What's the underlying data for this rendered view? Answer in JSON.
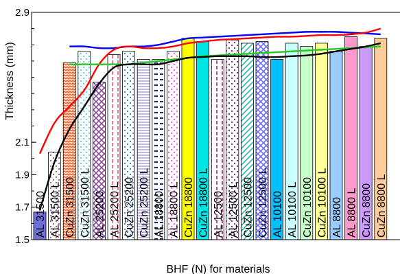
{
  "chart_data": {
    "type": "bar",
    "xlabel": "BHF (N) for materials",
    "ylabel": "Thickness (mm)",
    "ylim": [
      1.5,
      2.9
    ],
    "yticks": [
      1.5,
      1.7,
      1.9,
      2.1,
      2.9
    ],
    "ytick_labels": [
      "1.5",
      "1.7",
      "1.9",
      "2.1",
      "2.9"
    ],
    "categories": [
      "AL 31500",
      "AL 31500 L",
      "CuZn 31500",
      "CuZn 31500 L",
      "AL 25200",
      "AL 25200 L",
      "CuZn 25200",
      "CuZn 25200 L",
      "AL 18800",
      "AL 18800 L",
      "CuZn 18800",
      "CuZn 18800 L",
      "AL 12500",
      "AL 12500 L",
      "CuZn 12500",
      "CuZn 12500 L",
      "AL 10100",
      "AL 10100 L",
      "CuZn 10100",
      "CuZn 10100 L",
      "AL 8800",
      "AL 8800 L",
      "CuZn 8800",
      "CuZn 8800 L"
    ],
    "values": [
      1.67,
      2.04,
      2.59,
      2.66,
      2.47,
      2.64,
      2.66,
      2.61,
      2.61,
      2.66,
      2.74,
      2.72,
      2.61,
      2.73,
      2.71,
      2.72,
      2.61,
      2.71,
      2.69,
      2.71,
      2.66,
      2.75,
      2.69,
      2.74
    ],
    "bar_styles": [
      {
        "fill": "#6f6fd9",
        "pattern": "solid"
      },
      {
        "fill": "#a05080",
        "pattern": "dots"
      },
      {
        "fill": "#ff5a1e",
        "pattern": "zigzag"
      },
      {
        "fill": "#5ad2e0",
        "pattern": "dots"
      },
      {
        "fill": "#8a4aa0",
        "pattern": "crosshatch"
      },
      {
        "fill": "#ff4d6a",
        "pattern": "vdash"
      },
      {
        "fill": "#2d7fb0",
        "pattern": "dots"
      },
      {
        "fill": "#9a8ad8",
        "pattern": "hlines"
      },
      {
        "fill": "#1a2a70",
        "pattern": "hdash"
      },
      {
        "fill": "#ff4de0",
        "pattern": "dots"
      },
      {
        "fill": "#ffff00",
        "pattern": "solid"
      },
      {
        "fill": "#00e6e6",
        "pattern": "solid"
      },
      {
        "fill": "#a0206a",
        "pattern": "vdash"
      },
      {
        "fill": "#6a1a8a",
        "pattern": "dots"
      },
      {
        "fill": "#26b5a0",
        "pattern": "diag"
      },
      {
        "fill": "#6a6aff",
        "pattern": "crosshatch"
      },
      {
        "fill": "#00c0ff",
        "pattern": "solid"
      },
      {
        "fill": "#c8ffff",
        "pattern": "solid"
      },
      {
        "fill": "#c8ffc8",
        "pattern": "solid"
      },
      {
        "fill": "#ffff99",
        "pattern": "solid"
      },
      {
        "fill": "#99ccff",
        "pattern": "solid"
      },
      {
        "fill": "#ff99cc",
        "pattern": "solid"
      },
      {
        "fill": "#cc99ff",
        "pattern": "solid"
      },
      {
        "fill": "#ffcc99",
        "pattern": "solid"
      }
    ],
    "series": [
      {
        "color": "#0000ff",
        "x": [
          3,
          4,
          5,
          6,
          7,
          8,
          9,
          10,
          11,
          12,
          13,
          14,
          15,
          16,
          17,
          18,
          19,
          20,
          21,
          22,
          23,
          24
        ],
        "values": [
          2.69,
          2.69,
          2.68,
          2.68,
          2.69,
          2.69,
          2.7,
          2.72,
          2.74,
          2.745,
          2.75,
          2.755,
          2.76,
          2.765,
          2.77,
          2.775,
          2.78,
          2.78,
          2.78,
          2.775,
          2.77,
          2.765
        ]
      },
      {
        "color": "#ff0000",
        "x": [
          1,
          2,
          3,
          4,
          5,
          6,
          7,
          8,
          9,
          10,
          11,
          12,
          13,
          14,
          15,
          16,
          17,
          18,
          19,
          20,
          21,
          22,
          23,
          24
        ],
        "values": [
          2.03,
          2.22,
          2.32,
          2.42,
          2.58,
          2.67,
          2.69,
          2.68,
          2.68,
          2.69,
          2.71,
          2.72,
          2.73,
          2.735,
          2.74,
          2.745,
          2.75,
          2.75,
          2.755,
          2.76,
          2.76,
          2.765,
          2.775,
          2.8
        ]
      },
      {
        "color": "#22cc22",
        "x": [
          3,
          4,
          5,
          6,
          7,
          8,
          9,
          10,
          11,
          12,
          13,
          14,
          15,
          16,
          17,
          18,
          19,
          20,
          21,
          22,
          23,
          24
        ],
        "values": [
          2.58,
          2.58,
          2.58,
          2.58,
          2.58,
          2.59,
          2.6,
          2.61,
          2.62,
          2.63,
          2.635,
          2.64,
          2.645,
          2.65,
          2.655,
          2.66,
          2.665,
          2.67,
          2.675,
          2.68,
          2.685,
          2.69
        ]
      },
      {
        "color": "#000000",
        "x": [
          1,
          2,
          3,
          4,
          5,
          6,
          7,
          8,
          9,
          10,
          11,
          12,
          13,
          14,
          15,
          16,
          17,
          18,
          19,
          20,
          21,
          22,
          23,
          24
        ],
        "values": [
          1.68,
          1.98,
          2.18,
          2.32,
          2.46,
          2.56,
          2.58,
          2.58,
          2.58,
          2.6,
          2.62,
          2.625,
          2.63,
          2.63,
          2.63,
          2.625,
          2.625,
          2.63,
          2.635,
          2.645,
          2.66,
          2.675,
          2.69,
          2.71
        ]
      }
    ],
    "grid": false,
    "legend": "none"
  }
}
